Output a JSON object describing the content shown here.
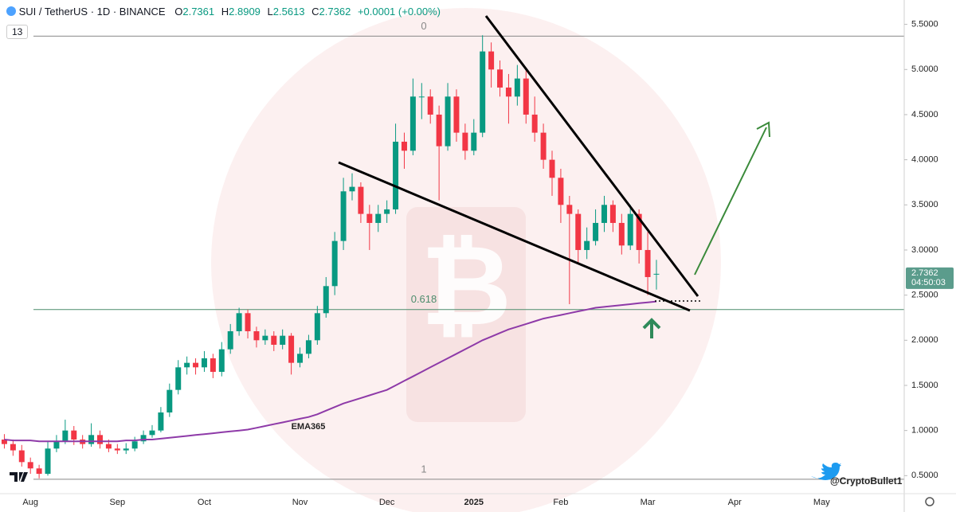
{
  "chart_data": {
    "type": "candlestick",
    "title": "SUI / TetherUS · 1D · BINANCE",
    "ohlc_header": [
      {
        "label": "O",
        "value": "2.7361"
      },
      {
        "label": "H",
        "value": "2.8909"
      },
      {
        "label": "L",
        "value": "2.5613"
      },
      {
        "label": "C",
        "value": "2.7362"
      }
    ],
    "change": "+0.0001 (+0.00%)",
    "indicator_badge": "13",
    "watermark": "@CryptoBullet1",
    "up_color": "#089981",
    "down_color": "#f23645",
    "categories": [
      null,
      null,
      null,
      "Aug",
      null,
      null,
      null,
      null,
      null,
      null,
      null,
      null,
      null,
      "Sep",
      null,
      null,
      null,
      null,
      null,
      null,
      null,
      null,
      null,
      "Oct",
      null,
      null,
      null,
      null,
      null,
      null,
      null,
      null,
      null,
      null,
      "Nov",
      null,
      null,
      null,
      null,
      null,
      null,
      null,
      null,
      null,
      "Dec",
      null,
      null,
      null,
      null,
      null,
      null,
      null,
      null,
      null,
      "2025",
      null,
      null,
      null,
      null,
      null,
      null,
      null,
      null,
      null,
      "Feb",
      null,
      null,
      null,
      null,
      null,
      null,
      null,
      null,
      null,
      "Mar",
      null,
      null,
      null,
      null,
      null,
      null,
      null,
      null,
      null,
      "Apr",
      null,
      null,
      null,
      null,
      null,
      null,
      null,
      null,
      null,
      "May",
      null,
      null,
      null,
      null,
      null,
      null,
      null,
      null,
      null
    ],
    "open": [
      0.9,
      0.85,
      0.78,
      0.65,
      0.58,
      0.52,
      0.8,
      0.88,
      1.0,
      0.9,
      0.85,
      0.95,
      0.85,
      0.8,
      0.78,
      0.8,
      0.88,
      0.95,
      1.0,
      1.2,
      1.45,
      1.7,
      1.75,
      1.7,
      1.8,
      1.65,
      1.9,
      2.1,
      2.3,
      2.1,
      2.0,
      2.05,
      1.95,
      2.05,
      1.75,
      1.85,
      2.0,
      2.3,
      2.6,
      3.1,
      3.65,
      3.7,
      3.4,
      3.3,
      3.4,
      3.45,
      4.2,
      4.1,
      4.7,
      4.7,
      4.5,
      4.15,
      4.7,
      4.3,
      4.1,
      4.3,
      5.2,
      5.0,
      4.8,
      4.7,
      4.9,
      4.5,
      4.3,
      4.0,
      3.8,
      3.5,
      3.4,
      3.0,
      3.1,
      3.3,
      3.5,
      3.3,
      3.05,
      3.4,
      3.0,
      2.7361,
      null,
      null,
      null,
      null,
      null,
      null,
      null,
      null,
      null,
      null,
      null,
      null,
      null,
      null,
      null,
      null,
      null,
      null,
      null,
      null,
      null,
      null,
      null,
      null,
      null,
      null,
      null,
      null
    ],
    "high": [
      0.96,
      0.9,
      0.84,
      0.7,
      0.62,
      0.88,
      0.95,
      1.12,
      1.05,
      0.95,
      1.08,
      1.0,
      0.9,
      0.85,
      0.86,
      0.93,
      1.0,
      1.06,
      1.26,
      1.52,
      1.78,
      1.82,
      1.8,
      1.88,
      1.85,
      1.98,
      2.18,
      2.36,
      2.34,
      2.15,
      2.12,
      2.1,
      2.12,
      2.08,
      1.92,
      2.06,
      2.38,
      2.7,
      3.2,
      3.8,
      3.85,
      3.75,
      3.5,
      3.5,
      3.55,
      4.4,
      4.3,
      4.9,
      4.85,
      4.78,
      4.6,
      4.85,
      4.78,
      4.4,
      4.45,
      5.38,
      5.3,
      5.1,
      4.95,
      5.05,
      5.0,
      4.7,
      4.4,
      4.1,
      3.9,
      3.6,
      3.45,
      3.25,
      3.45,
      3.6,
      3.55,
      3.4,
      3.5,
      3.45,
      3.2,
      2.8909,
      null,
      null,
      null,
      null,
      null,
      null,
      null,
      null,
      null,
      null,
      null,
      null,
      null,
      null,
      null,
      null,
      null,
      null,
      null,
      null,
      null,
      null,
      null,
      null,
      null,
      null,
      null,
      null
    ],
    "low": [
      0.8,
      0.72,
      0.6,
      0.52,
      0.47,
      0.5,
      0.76,
      0.85,
      0.84,
      0.8,
      0.82,
      0.8,
      0.76,
      0.74,
      0.74,
      0.77,
      0.85,
      0.92,
      0.98,
      1.15,
      1.4,
      1.62,
      1.62,
      1.65,
      1.58,
      1.6,
      1.85,
      2.05,
      2.02,
      1.92,
      1.95,
      1.88,
      1.9,
      1.62,
      1.7,
      1.8,
      1.95,
      2.25,
      2.5,
      3.0,
      3.55,
      3.3,
      3.0,
      3.2,
      3.3,
      3.4,
      3.9,
      4.05,
      4.45,
      4.4,
      3.55,
      4.1,
      4.2,
      4.0,
      4.05,
      4.25,
      4.8,
      4.7,
      4.4,
      4.6,
      4.4,
      4.2,
      3.9,
      3.6,
      3.3,
      2.4,
      2.85,
      2.9,
      3.05,
      3.2,
      3.2,
      2.95,
      3.0,
      2.85,
      2.5,
      2.5613,
      null,
      null,
      null,
      null,
      null,
      null,
      null,
      null,
      null,
      null,
      null,
      null,
      null,
      null,
      null,
      null,
      null,
      null,
      null,
      null,
      null,
      null,
      null,
      null,
      null,
      null,
      null,
      null
    ],
    "close": [
      0.85,
      0.78,
      0.65,
      0.58,
      0.52,
      0.8,
      0.88,
      1.0,
      0.9,
      0.85,
      0.95,
      0.85,
      0.8,
      0.78,
      0.8,
      0.88,
      0.95,
      1.0,
      1.2,
      1.45,
      1.7,
      1.75,
      1.7,
      1.8,
      1.65,
      1.9,
      2.1,
      2.3,
      2.1,
      2.0,
      2.05,
      1.95,
      2.05,
      1.75,
      1.85,
      2.0,
      2.3,
      2.6,
      3.1,
      3.65,
      3.7,
      3.4,
      3.3,
      3.4,
      3.45,
      4.2,
      4.1,
      4.7,
      4.7,
      4.5,
      4.15,
      4.7,
      4.3,
      4.1,
      4.3,
      5.2,
      5.0,
      4.8,
      4.7,
      4.9,
      4.5,
      4.3,
      4.0,
      3.8,
      3.5,
      3.4,
      3.0,
      3.1,
      3.3,
      3.5,
      3.3,
      3.05,
      3.4,
      3.0,
      2.7,
      2.7362,
      null,
      null,
      null,
      null,
      null,
      null,
      null,
      null,
      null,
      null,
      null,
      null,
      null,
      null,
      null,
      null,
      null,
      null,
      null,
      null,
      null,
      null,
      null,
      null,
      null,
      null,
      null,
      null
    ],
    "series": [
      {
        "name": "EMA365",
        "color": "#8e3aa8",
        "values": [
          0.9,
          0.89,
          0.89,
          0.89,
          0.88,
          0.88,
          0.88,
          0.88,
          0.88,
          0.88,
          0.88,
          0.88,
          0.88,
          0.88,
          0.89,
          0.89,
          0.9,
          0.9,
          0.91,
          0.92,
          0.93,
          0.94,
          0.95,
          0.96,
          0.97,
          0.98,
          0.99,
          1.0,
          1.01,
          1.03,
          1.05,
          1.07,
          1.09,
          1.11,
          1.13,
          1.15,
          1.18,
          1.22,
          1.26,
          1.3,
          1.33,
          1.36,
          1.39,
          1.42,
          1.45,
          1.5,
          1.55,
          1.6,
          1.65,
          1.7,
          1.75,
          1.8,
          1.85,
          1.9,
          1.95,
          2.0,
          2.04,
          2.08,
          2.12,
          2.15,
          2.18,
          2.21,
          2.24,
          2.26,
          2.28,
          2.3,
          2.32,
          2.34,
          2.36,
          2.37,
          2.38,
          2.39,
          2.4,
          2.41,
          2.42,
          2.43,
          null,
          null,
          null,
          null,
          null,
          null,
          null,
          null,
          null,
          null,
          null,
          null,
          null,
          null,
          null,
          null,
          null,
          null,
          null,
          null,
          null,
          null,
          null,
          null,
          null,
          null,
          null,
          null
        ]
      }
    ],
    "fib_levels": [
      {
        "label": "0",
        "price": 5.37,
        "color": "#888888"
      },
      {
        "label": "0.618",
        "price": 2.34,
        "color": "#4c8c6c"
      },
      {
        "label": "1",
        "price": 0.46,
        "color": "#888888"
      }
    ],
    "ylim": [
      0.3,
      5.77
    ],
    "yticks": [
      {
        "value": 0.5,
        "label": "0.5000"
      },
      {
        "value": 1.0,
        "label": "1.0000"
      },
      {
        "value": 1.5,
        "label": "1.5000"
      },
      {
        "value": 2.0,
        "label": "2.0000"
      },
      {
        "value": 2.5,
        "label": "2.5000"
      },
      {
        "value": 3.0,
        "label": "3.0000"
      },
      {
        "value": 3.5,
        "label": "3.5000"
      },
      {
        "value": 4.0,
        "label": "4.0000"
      },
      {
        "value": 4.5,
        "label": "4.5000"
      },
      {
        "value": 5.0,
        "label": "5.0000"
      },
      {
        "value": 5.5,
        "label": "5.5000"
      }
    ],
    "price_tag": {
      "value": 2.7362,
      "color": "#5b9c8c"
    },
    "countdown": "04:50:03",
    "grid": false
  }
}
